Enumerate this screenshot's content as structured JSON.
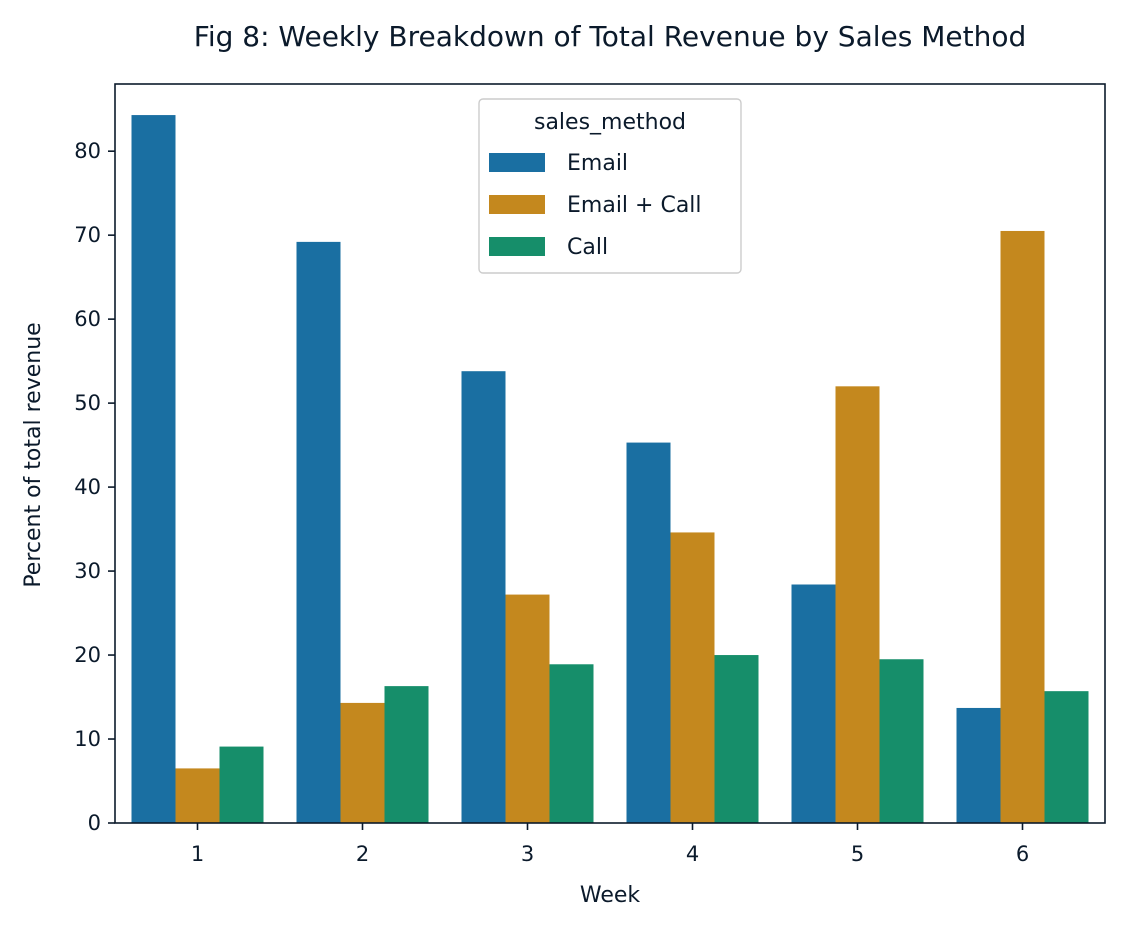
{
  "chart_data": {
    "type": "bar",
    "title": "Fig 8: Weekly Breakdown of Total Revenue by Sales Method",
    "xlabel": "Week",
    "ylabel": "Percent of total revenue",
    "categories": [
      "1",
      "2",
      "3",
      "4",
      "5",
      "6"
    ],
    "ylim": [
      0,
      88
    ],
    "yticks": [
      0,
      10,
      20,
      30,
      40,
      50,
      60,
      70,
      80
    ],
    "grid": false,
    "legend": {
      "title": "sales_method",
      "placement": "top-center"
    },
    "series": [
      {
        "name": "Email",
        "color": "#1a6fa2",
        "values": [
          84.3,
          69.2,
          53.8,
          45.3,
          28.4,
          13.7
        ]
      },
      {
        "name": "Email + Call",
        "color": "#c4881e",
        "values": [
          6.5,
          14.3,
          27.2,
          34.6,
          52.0,
          70.5
        ]
      },
      {
        "name": "Call",
        "color": "#168e6a",
        "values": [
          9.1,
          16.3,
          18.9,
          20.0,
          19.5,
          15.7
        ]
      }
    ]
  }
}
